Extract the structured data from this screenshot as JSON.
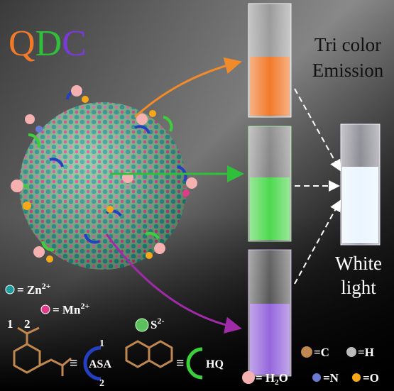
{
  "title": "QDC",
  "emission_label": [
    "Tri color",
    "Emission"
  ],
  "result_label": [
    "White",
    "light"
  ],
  "ions": [
    {
      "text": "= Zn",
      "sup": "2+"
    },
    {
      "text": "= Mn",
      "sup": "2+"
    },
    {
      "text": "S",
      "sup": "2-"
    }
  ],
  "ligands": [
    {
      "name": "ASA",
      "sites": [
        "1",
        "2"
      ],
      "structure_sites": [
        "1",
        "2"
      ]
    },
    {
      "name": "HQ"
    }
  ],
  "atoms": [
    {
      "text": "=C"
    },
    {
      "text": "=H"
    },
    {
      "text": "= H",
      "sub": "2",
      "tail": "O"
    },
    {
      "text": "=N"
    },
    {
      "text": "=O"
    }
  ]
}
